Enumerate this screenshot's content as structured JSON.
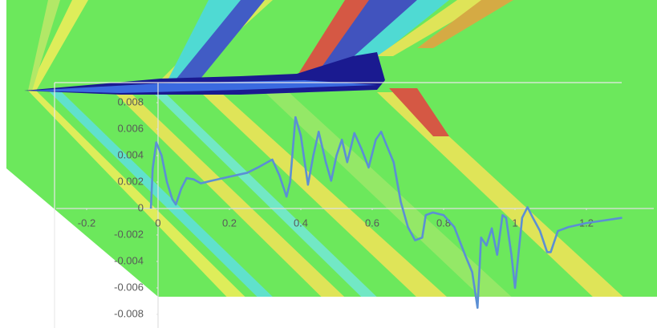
{
  "chart_data": {
    "type": "line",
    "x": [
      -0.02,
      -0.015,
      -0.005,
      0.01,
      0.025,
      0.04,
      0.05,
      0.065,
      0.08,
      0.1,
      0.12,
      0.15,
      0.2,
      0.25,
      0.28,
      0.3,
      0.32,
      0.34,
      0.36,
      0.37,
      0.385,
      0.4,
      0.42,
      0.435,
      0.45,
      0.47,
      0.485,
      0.5,
      0.515,
      0.53,
      0.55,
      0.57,
      0.59,
      0.61,
      0.625,
      0.64,
      0.66,
      0.68,
      0.7,
      0.72,
      0.74,
      0.75,
      0.77,
      0.8,
      0.83,
      0.86,
      0.88,
      0.895,
      0.905,
      0.92,
      0.935,
      0.95,
      0.965,
      0.975,
      0.99,
      1.0,
      1.02,
      1.035,
      1.05,
      1.07,
      1.09,
      1.1,
      1.12,
      1.15,
      1.2,
      1.25,
      1.3
    ],
    "series": [
      {
        "color": "#5b8fd4",
        "values": [
          0,
          0.003,
          0.005,
          0.004,
          0.002,
          0.0007,
          0.0003,
          0.0015,
          0.0023,
          0.0022,
          0.0019,
          0.0021,
          0.0024,
          0.0027,
          0.0031,
          0.0034,
          0.0037,
          0.0025,
          0.0009,
          0.002,
          0.0069,
          0.0055,
          0.0018,
          0.004,
          0.0058,
          0.0035,
          0.0021,
          0.004,
          0.0052,
          0.0035,
          0.0057,
          0.0045,
          0.0031,
          0.0052,
          0.0058,
          0.0048,
          0.0035,
          0.0005,
          -0.0014,
          -0.0024,
          -0.0022,
          -0.0005,
          -0.0003,
          -0.0005,
          -0.0014,
          -0.0035,
          -0.0048,
          -0.0075,
          -0.0022,
          -0.0028,
          -0.0015,
          -0.0035,
          -0.0005,
          -0.0007,
          -0.0035,
          -0.006,
          -0.0007,
          0.0001,
          -0.0007,
          -0.0017,
          -0.0033,
          -0.0033,
          -0.0017,
          -0.0014,
          -0.0011,
          -0.0009,
          -0.0007
        ]
      }
    ],
    "xlim": [
      -0.3,
      1.3
    ],
    "xticks": [
      -0.2,
      0,
      0.2,
      0.4,
      0.6,
      0.8,
      1,
      1.2
    ],
    "ylim": [
      -0.009,
      0.009
    ],
    "yticks": [
      -0.008,
      -0.006,
      -0.004,
      -0.002,
      0,
      0.002,
      0.004,
      0.006,
      0.008
    ]
  }
}
